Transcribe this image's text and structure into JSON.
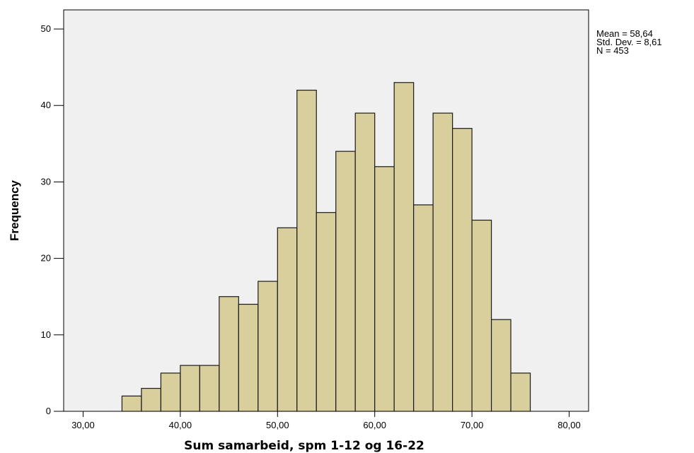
{
  "chart_data": {
    "type": "histogram",
    "xlabel": "Sum samarbeid, spm 1-12 og 16-22",
    "ylabel": "Frequency",
    "xlim": [
      28,
      82
    ],
    "ylim": [
      0,
      52.5
    ],
    "x_ticks": [
      {
        "value": 30,
        "label": "30,00"
      },
      {
        "value": 40,
        "label": "40,00"
      },
      {
        "value": 50,
        "label": "50,00"
      },
      {
        "value": 60,
        "label": "60,00"
      },
      {
        "value": 70,
        "label": "70,00"
      },
      {
        "value": 80,
        "label": "80,00"
      }
    ],
    "y_ticks": [
      {
        "value": 0,
        "label": "0"
      },
      {
        "value": 10,
        "label": "10"
      },
      {
        "value": 20,
        "label": "20"
      },
      {
        "value": 30,
        "label": "30"
      },
      {
        "value": 40,
        "label": "40"
      },
      {
        "value": 50,
        "label": "50"
      }
    ],
    "bin_width": 2,
    "bin_starts": [
      34,
      36,
      38,
      40,
      42,
      44,
      46,
      48,
      50,
      52,
      54,
      56,
      58,
      60,
      62,
      64,
      66,
      68,
      70,
      72,
      74
    ],
    "values": [
      2,
      3,
      5,
      6,
      6,
      15,
      14,
      17,
      24,
      42,
      26,
      34,
      39,
      32,
      43,
      27,
      39,
      37,
      25,
      12,
      5
    ],
    "stats": [
      "Mean = 58,64",
      "Std. Dev. = 8,61",
      "N = 453"
    ],
    "colors": {
      "bar_fill": "#d8cf9c",
      "bar_stroke": "#1a1a1a",
      "plot_background": "#f0f0f0",
      "axis": "#000000"
    },
    "grid": false
  }
}
